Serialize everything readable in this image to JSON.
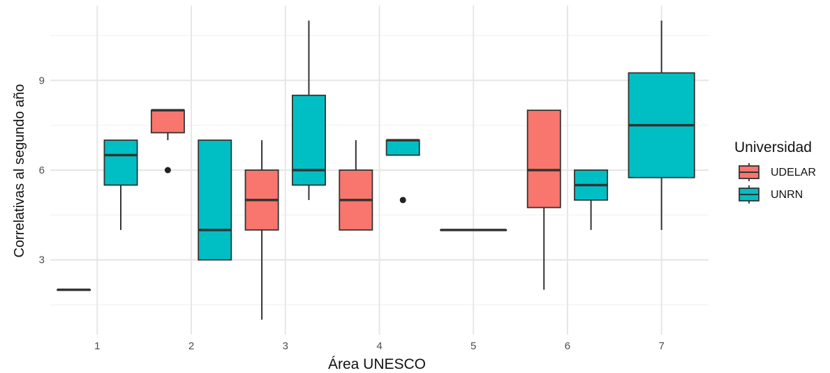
{
  "chart_data": {
    "type": "boxplot",
    "title": "",
    "xlabel": "Área UNESCO",
    "ylabel": "Correlativas al segundo año",
    "categories": [
      "1",
      "2",
      "3",
      "4",
      "5",
      "6",
      "7"
    ],
    "y_ticks": [
      3,
      6,
      9
    ],
    "ylim": [
      0.5,
      11.5
    ],
    "grid": true,
    "legend": {
      "title": "Universidad",
      "placement": "right"
    },
    "series": [
      {
        "name": "UDELAR",
        "color": "#F8766D",
        "boxes": [
          {
            "category": "1",
            "whisker_low": 2,
            "q1": 2,
            "median": 2,
            "q3": 2,
            "whisker_high": 2,
            "outliers": []
          },
          {
            "category": "2",
            "whisker_low": 7,
            "q1": 7.25,
            "median": 8,
            "q3": 8,
            "whisker_high": 8,
            "outliers": [
              6
            ]
          },
          {
            "category": "3",
            "whisker_low": 1,
            "q1": 4,
            "median": 5,
            "q3": 6,
            "whisker_high": 7,
            "outliers": []
          },
          {
            "category": "4",
            "whisker_low": 4,
            "q1": 4,
            "median": 5,
            "q3": 6,
            "whisker_high": 7,
            "outliers": []
          },
          {
            "category": "5",
            "whisker_low": 4,
            "q1": 4,
            "median": 4,
            "q3": 4,
            "whisker_high": 4,
            "outliers": []
          },
          {
            "category": "6",
            "whisker_low": 2,
            "q1": 4.75,
            "median": 6,
            "q3": 8,
            "whisker_high": 8,
            "outliers": []
          }
        ]
      },
      {
        "name": "UNRN",
        "color": "#00BFC4",
        "boxes": [
          {
            "category": "1",
            "whisker_low": 4,
            "q1": 5.5,
            "median": 6.5,
            "q3": 7,
            "whisker_high": 7,
            "outliers": []
          },
          {
            "category": "2",
            "whisker_low": 3,
            "q1": 3,
            "median": 4,
            "q3": 7,
            "whisker_high": 7,
            "outliers": []
          },
          {
            "category": "3",
            "whisker_low": 5,
            "q1": 5.5,
            "median": 6,
            "q3": 8.5,
            "whisker_high": 11,
            "outliers": []
          },
          {
            "category": "4",
            "whisker_low": 6.5,
            "q1": 6.5,
            "median": 7,
            "q3": 7,
            "whisker_high": 7,
            "outliers": [
              5
            ]
          },
          {
            "category": "6",
            "whisker_low": 4,
            "q1": 5,
            "median": 5.5,
            "q3": 6,
            "whisker_high": 6,
            "outliers": []
          },
          {
            "category": "7",
            "whisker_low": 4,
            "q1": 5.75,
            "median": 7.5,
            "q3": 9.25,
            "whisker_high": 11,
            "outliers": []
          }
        ]
      }
    ]
  }
}
